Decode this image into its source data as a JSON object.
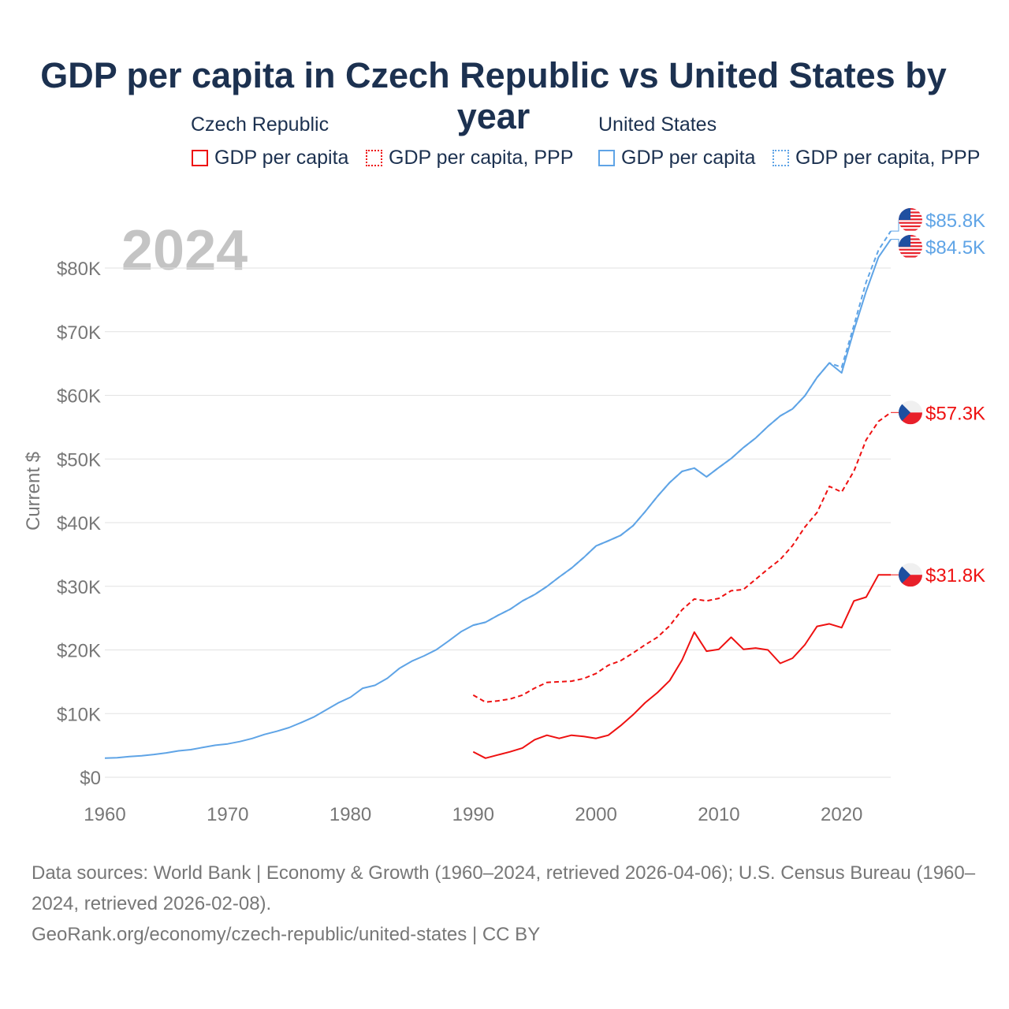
{
  "chart_data": {
    "type": "line",
    "title": "GDP per capita in Czech Republic vs United States by year",
    "ylabel": "Current $",
    "xlabel": "",
    "xlim": [
      1960,
      2024
    ],
    "ylim": [
      0,
      80000
    ],
    "grid": true,
    "year_label": "2024",
    "x_ticks": [
      "1960",
      "1970",
      "1980",
      "1990",
      "2000",
      "2010",
      "2020"
    ],
    "y_ticks": [
      {
        "v": 0,
        "l": "$0"
      },
      {
        "v": 10000,
        "l": "$10K"
      },
      {
        "v": 20000,
        "l": "$20K"
      },
      {
        "v": 30000,
        "l": "$30K"
      },
      {
        "v": 40000,
        "l": "$40K"
      },
      {
        "v": 50000,
        "l": "$50K"
      },
      {
        "v": 60000,
        "l": "$60K"
      },
      {
        "v": 70000,
        "l": "$70K"
      },
      {
        "v": 80000,
        "l": "$80K"
      }
    ],
    "legend": {
      "groups": [
        {
          "country": "Czech Republic",
          "items": [
            "GDP per capita",
            "GDP per capita, PPP"
          ]
        },
        {
          "country": "United States",
          "items": [
            "GDP per capita",
            "GDP per capita, PPP"
          ]
        }
      ],
      "placement": "top"
    },
    "colors": {
      "czech": "#ee1111",
      "us": "#5fa4e6"
    },
    "series": [
      {
        "name": "United States GDP per capita",
        "country": "us",
        "dashed": false,
        "start": 1960,
        "end_label": "$84.5K",
        "values": [
          3007,
          3067,
          3244,
          3375,
          3574,
          3828,
          4146,
          4336,
          4696,
          5032,
          5234,
          5609,
          6094,
          6726,
          7226,
          7801,
          8592,
          9453,
          10565,
          11674,
          12575,
          13976,
          14434,
          15544,
          17121,
          18237,
          19071,
          20039,
          21417,
          22857,
          23889,
          24342,
          25419,
          26387,
          27695,
          28691,
          29968,
          31459,
          32854,
          34513,
          36330,
          37134,
          37998,
          39490,
          41725,
          44123,
          46302,
          48050,
          48570,
          47195,
          48651,
          50066,
          51784,
          53291,
          55124,
          56763,
          57867,
          59915,
          62805,
          65095,
          63528,
          70219,
          76330,
          81695,
          84500
        ]
      },
      {
        "name": "United States GDP per capita, PPP",
        "country": "us",
        "dashed": true,
        "start": 1990,
        "end_label": "$85.8K",
        "values": [
          23889,
          24342,
          25419,
          26387,
          27695,
          28691,
          29968,
          31459,
          32854,
          34513,
          36330,
          37134,
          37998,
          39490,
          41725,
          44123,
          46302,
          48050,
          48570,
          47195,
          48651,
          50066,
          51784,
          53291,
          55124,
          56763,
          57867,
          59915,
          62805,
          65095,
          64400,
          71000,
          77800,
          82800,
          85800
        ]
      },
      {
        "name": "Czech Republic GDP per capita, PPP",
        "country": "czech",
        "dashed": true,
        "start": 1990,
        "end_label": "$57.3K",
        "values": [
          12900,
          11800,
          12000,
          12300,
          12900,
          14000,
          14900,
          15000,
          15100,
          15500,
          16300,
          17600,
          18300,
          19500,
          20800,
          22000,
          23800,
          26300,
          28000,
          27700,
          28100,
          29300,
          29500,
          31100,
          32700,
          34200,
          36400,
          39300,
          41600,
          45700,
          44800,
          48100,
          53000,
          55900,
          57300
        ]
      },
      {
        "name": "Czech Republic GDP per capita",
        "country": "czech",
        "dashed": false,
        "start": 1990,
        "end_label": "$31.8K",
        "values": [
          4000,
          3000,
          3500,
          4000,
          4600,
          5900,
          6600,
          6100,
          6600,
          6400,
          6100,
          6600,
          8100,
          9800,
          11700,
          13300,
          15200,
          18400,
          22800,
          19800,
          20100,
          22000,
          20100,
          20300,
          20000,
          17900,
          18700,
          20800,
          23700,
          24100,
          23500,
          27700,
          28300,
          31800,
          31800
        ]
      }
    ]
  },
  "footer": {
    "sources": "Data sources: World Bank | Economy & Growth (1960–2024, retrieved 2026-04-06); U.S. Census Bureau (1960–2024, retrieved 2026-02-08).",
    "link": "GeoRank.org/economy/czech-republic/united-states | CC BY"
  }
}
